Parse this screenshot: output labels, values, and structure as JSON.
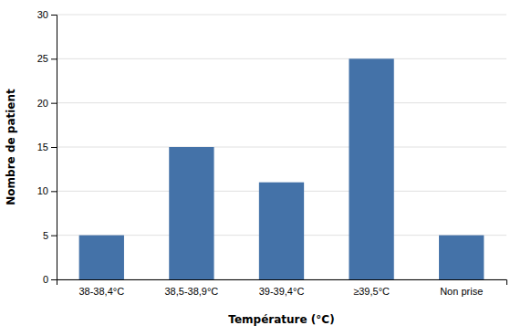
{
  "chart_data": {
    "type": "bar",
    "categories": [
      "38-38,4°C",
      "38,5-38,9°C",
      "39-39,4°C",
      "≥39,5°C",
      "Non prise"
    ],
    "values": [
      5,
      15,
      11,
      25,
      5
    ],
    "color": "#4472a8",
    "xlabel": "Température (°C)",
    "ylabel": "Nombre de patient",
    "ylim": [
      0,
      30
    ],
    "yticks": [
      0,
      5,
      10,
      15,
      20,
      25,
      30
    ],
    "grid": true
  }
}
